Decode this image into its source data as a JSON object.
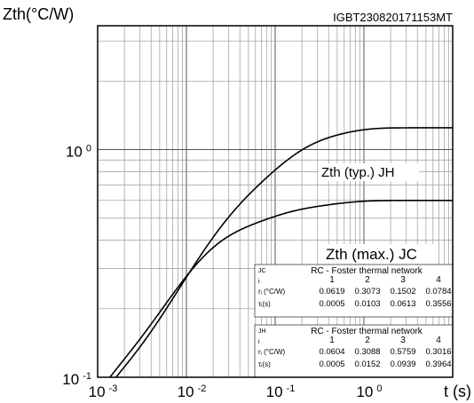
{
  "chart_data": {
    "type": "line",
    "title": "",
    "code": "IGBT230820171153MT",
    "ylabel": "Zth(°C/W)",
    "xlabel": "t (s)",
    "xscale": "log",
    "yscale": "log",
    "xlim": [
      0.001,
      10
    ],
    "ylim": [
      0.1,
      3.5
    ],
    "x_ticks": [
      {
        "base": "10",
        "exp": "-3"
      },
      {
        "base": "10",
        "exp": "-2"
      },
      {
        "base": "10",
        "exp": "-1"
      },
      {
        "base": "10",
        "exp": "0"
      }
    ],
    "y_ticks": [
      {
        "base": "10",
        "exp": "-1"
      },
      {
        "base": "10",
        "exp": "0"
      }
    ],
    "grid": true,
    "series": [
      {
        "name": "Zth (typ.) JH",
        "foster": {
          "r": [
            0.0604,
            0.3088,
            0.5759,
            0.3016
          ],
          "tau": [
            0.0005,
            0.0152,
            0.0939,
            0.3964
          ]
        }
      },
      {
        "name": "Zth (max.) JC",
        "foster": {
          "r": [
            0.0619,
            0.3073,
            0.1502,
            0.0784
          ],
          "tau": [
            0.0005,
            0.0103,
            0.0613,
            0.3556
          ]
        }
      }
    ],
    "tables": [
      {
        "tag": "JC",
        "title": "RC - Foster thermal network",
        "index_label": "i",
        "cols": [
          "1",
          "2",
          "3",
          "4"
        ],
        "rows": [
          {
            "label": "rᵢ (°C/W)",
            "values": [
              "0.0619",
              "0.3073",
              "0.1502",
              "0.0784"
            ]
          },
          {
            "label": "τᵢ(s)",
            "values": [
              "0.0005",
              "0.0103",
              "0.0613",
              "0.3556"
            ]
          }
        ]
      },
      {
        "tag": "JH",
        "title": "RC - Foster thermal network",
        "index_label": "i",
        "cols": [
          "1",
          "2",
          "3",
          "4"
        ],
        "rows": [
          {
            "label": "rᵢ (°C/W)",
            "values": [
              "0.0604",
              "0.3088",
              "0.5759",
              "0.3016"
            ]
          },
          {
            "label": "τᵢ(s)",
            "values": [
              "0.0005",
              "0.0152",
              "0.0939",
              "0.3964"
            ]
          }
        ]
      }
    ]
  }
}
